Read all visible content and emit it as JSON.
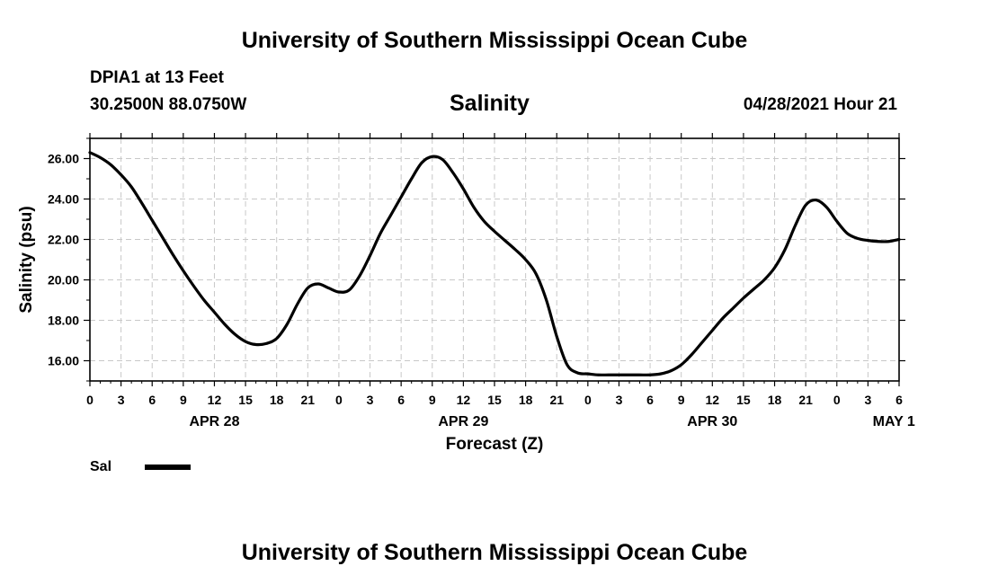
{
  "page": {
    "top_title": "University of Southern Mississippi Ocean Cube",
    "bottom_title": "University of Southern Mississippi Ocean Cube",
    "station_line1": "DPIA1 at 13 Feet",
    "station_line2": "30.2500N  88.0750W",
    "chart_title": "Salinity",
    "timestamp": "04/28/2021 Hour 21",
    "legend_label": "Sal"
  },
  "chart_data": {
    "type": "line",
    "title": "Salinity",
    "xlabel": "Forecast (Z)",
    "ylabel": "Salinity (psu)",
    "x_unit": "hours from 2021-04-28 00Z",
    "xlim": [
      0,
      78
    ],
    "ylim": [
      15,
      27
    ],
    "grid": true,
    "x_ticks": [
      {
        "value": 0,
        "label": "0"
      },
      {
        "value": 3,
        "label": "3"
      },
      {
        "value": 6,
        "label": "6"
      },
      {
        "value": 9,
        "label": "9"
      },
      {
        "value": 12,
        "label": "12"
      },
      {
        "value": 15,
        "label": "15"
      },
      {
        "value": 18,
        "label": "18"
      },
      {
        "value": 21,
        "label": "21"
      },
      {
        "value": 24,
        "label": "0"
      },
      {
        "value": 27,
        "label": "3"
      },
      {
        "value": 30,
        "label": "6"
      },
      {
        "value": 33,
        "label": "9"
      },
      {
        "value": 36,
        "label": "12"
      },
      {
        "value": 39,
        "label": "15"
      },
      {
        "value": 42,
        "label": "18"
      },
      {
        "value": 45,
        "label": "21"
      },
      {
        "value": 48,
        "label": "0"
      },
      {
        "value": 51,
        "label": "3"
      },
      {
        "value": 54,
        "label": "6"
      },
      {
        "value": 57,
        "label": "9"
      },
      {
        "value": 60,
        "label": "12"
      },
      {
        "value": 63,
        "label": "15"
      },
      {
        "value": 66,
        "label": "18"
      },
      {
        "value": 69,
        "label": "21"
      },
      {
        "value": 72,
        "label": "0"
      },
      {
        "value": 75,
        "label": "3"
      },
      {
        "value": 78,
        "label": "6"
      }
    ],
    "date_labels": [
      {
        "value": 12,
        "label": "APR 28"
      },
      {
        "value": 36,
        "label": "APR 29"
      },
      {
        "value": 60,
        "label": "APR 30"
      },
      {
        "value": 77.5,
        "label": "MAY 1"
      }
    ],
    "y_ticks": [
      {
        "value": 16,
        "label": "16.00"
      },
      {
        "value": 18,
        "label": "18.00"
      },
      {
        "value": 20,
        "label": "20.00"
      },
      {
        "value": 22,
        "label": "22.00"
      },
      {
        "value": 24,
        "label": "24.00"
      },
      {
        "value": 26,
        "label": "26.00"
      }
    ],
    "series": [
      {
        "name": "Sal",
        "color": "#000000",
        "x": [
          0,
          1,
          2,
          3,
          4,
          5,
          6,
          7,
          8,
          9,
          10,
          11,
          12,
          13,
          14,
          15,
          16,
          17,
          18,
          19,
          20,
          21,
          22,
          23,
          24,
          25,
          26,
          27,
          28,
          29,
          30,
          31,
          32,
          33,
          34,
          35,
          36,
          37,
          38,
          39,
          40,
          41,
          42,
          43,
          44,
          45,
          46,
          47,
          48,
          49,
          50,
          51,
          52,
          53,
          54,
          55,
          56,
          57,
          58,
          59,
          60,
          61,
          62,
          63,
          64,
          65,
          66,
          67,
          68,
          69,
          70,
          71,
          72,
          73,
          74,
          75,
          76,
          77,
          78
        ],
        "values": [
          26.3,
          26.05,
          25.7,
          25.2,
          24.6,
          23.8,
          22.95,
          22.1,
          21.25,
          20.45,
          19.7,
          19.0,
          18.4,
          17.8,
          17.3,
          16.95,
          16.8,
          16.85,
          17.1,
          17.8,
          18.8,
          19.6,
          19.8,
          19.6,
          19.4,
          19.5,
          20.2,
          21.2,
          22.3,
          23.2,
          24.1,
          25.0,
          25.8,
          26.1,
          25.95,
          25.3,
          24.5,
          23.6,
          22.9,
          22.4,
          21.95,
          21.5,
          21.0,
          20.3,
          19.0,
          17.2,
          15.8,
          15.4,
          15.35,
          15.3,
          15.3,
          15.3,
          15.3,
          15.3,
          15.3,
          15.35,
          15.5,
          15.8,
          16.3,
          16.9,
          17.5,
          18.1,
          18.6,
          19.1,
          19.55,
          20.0,
          20.6,
          21.5,
          22.7,
          23.7,
          23.95,
          23.6,
          22.9,
          22.3,
          22.05,
          21.95,
          21.9,
          21.9,
          22.0
        ]
      }
    ]
  }
}
